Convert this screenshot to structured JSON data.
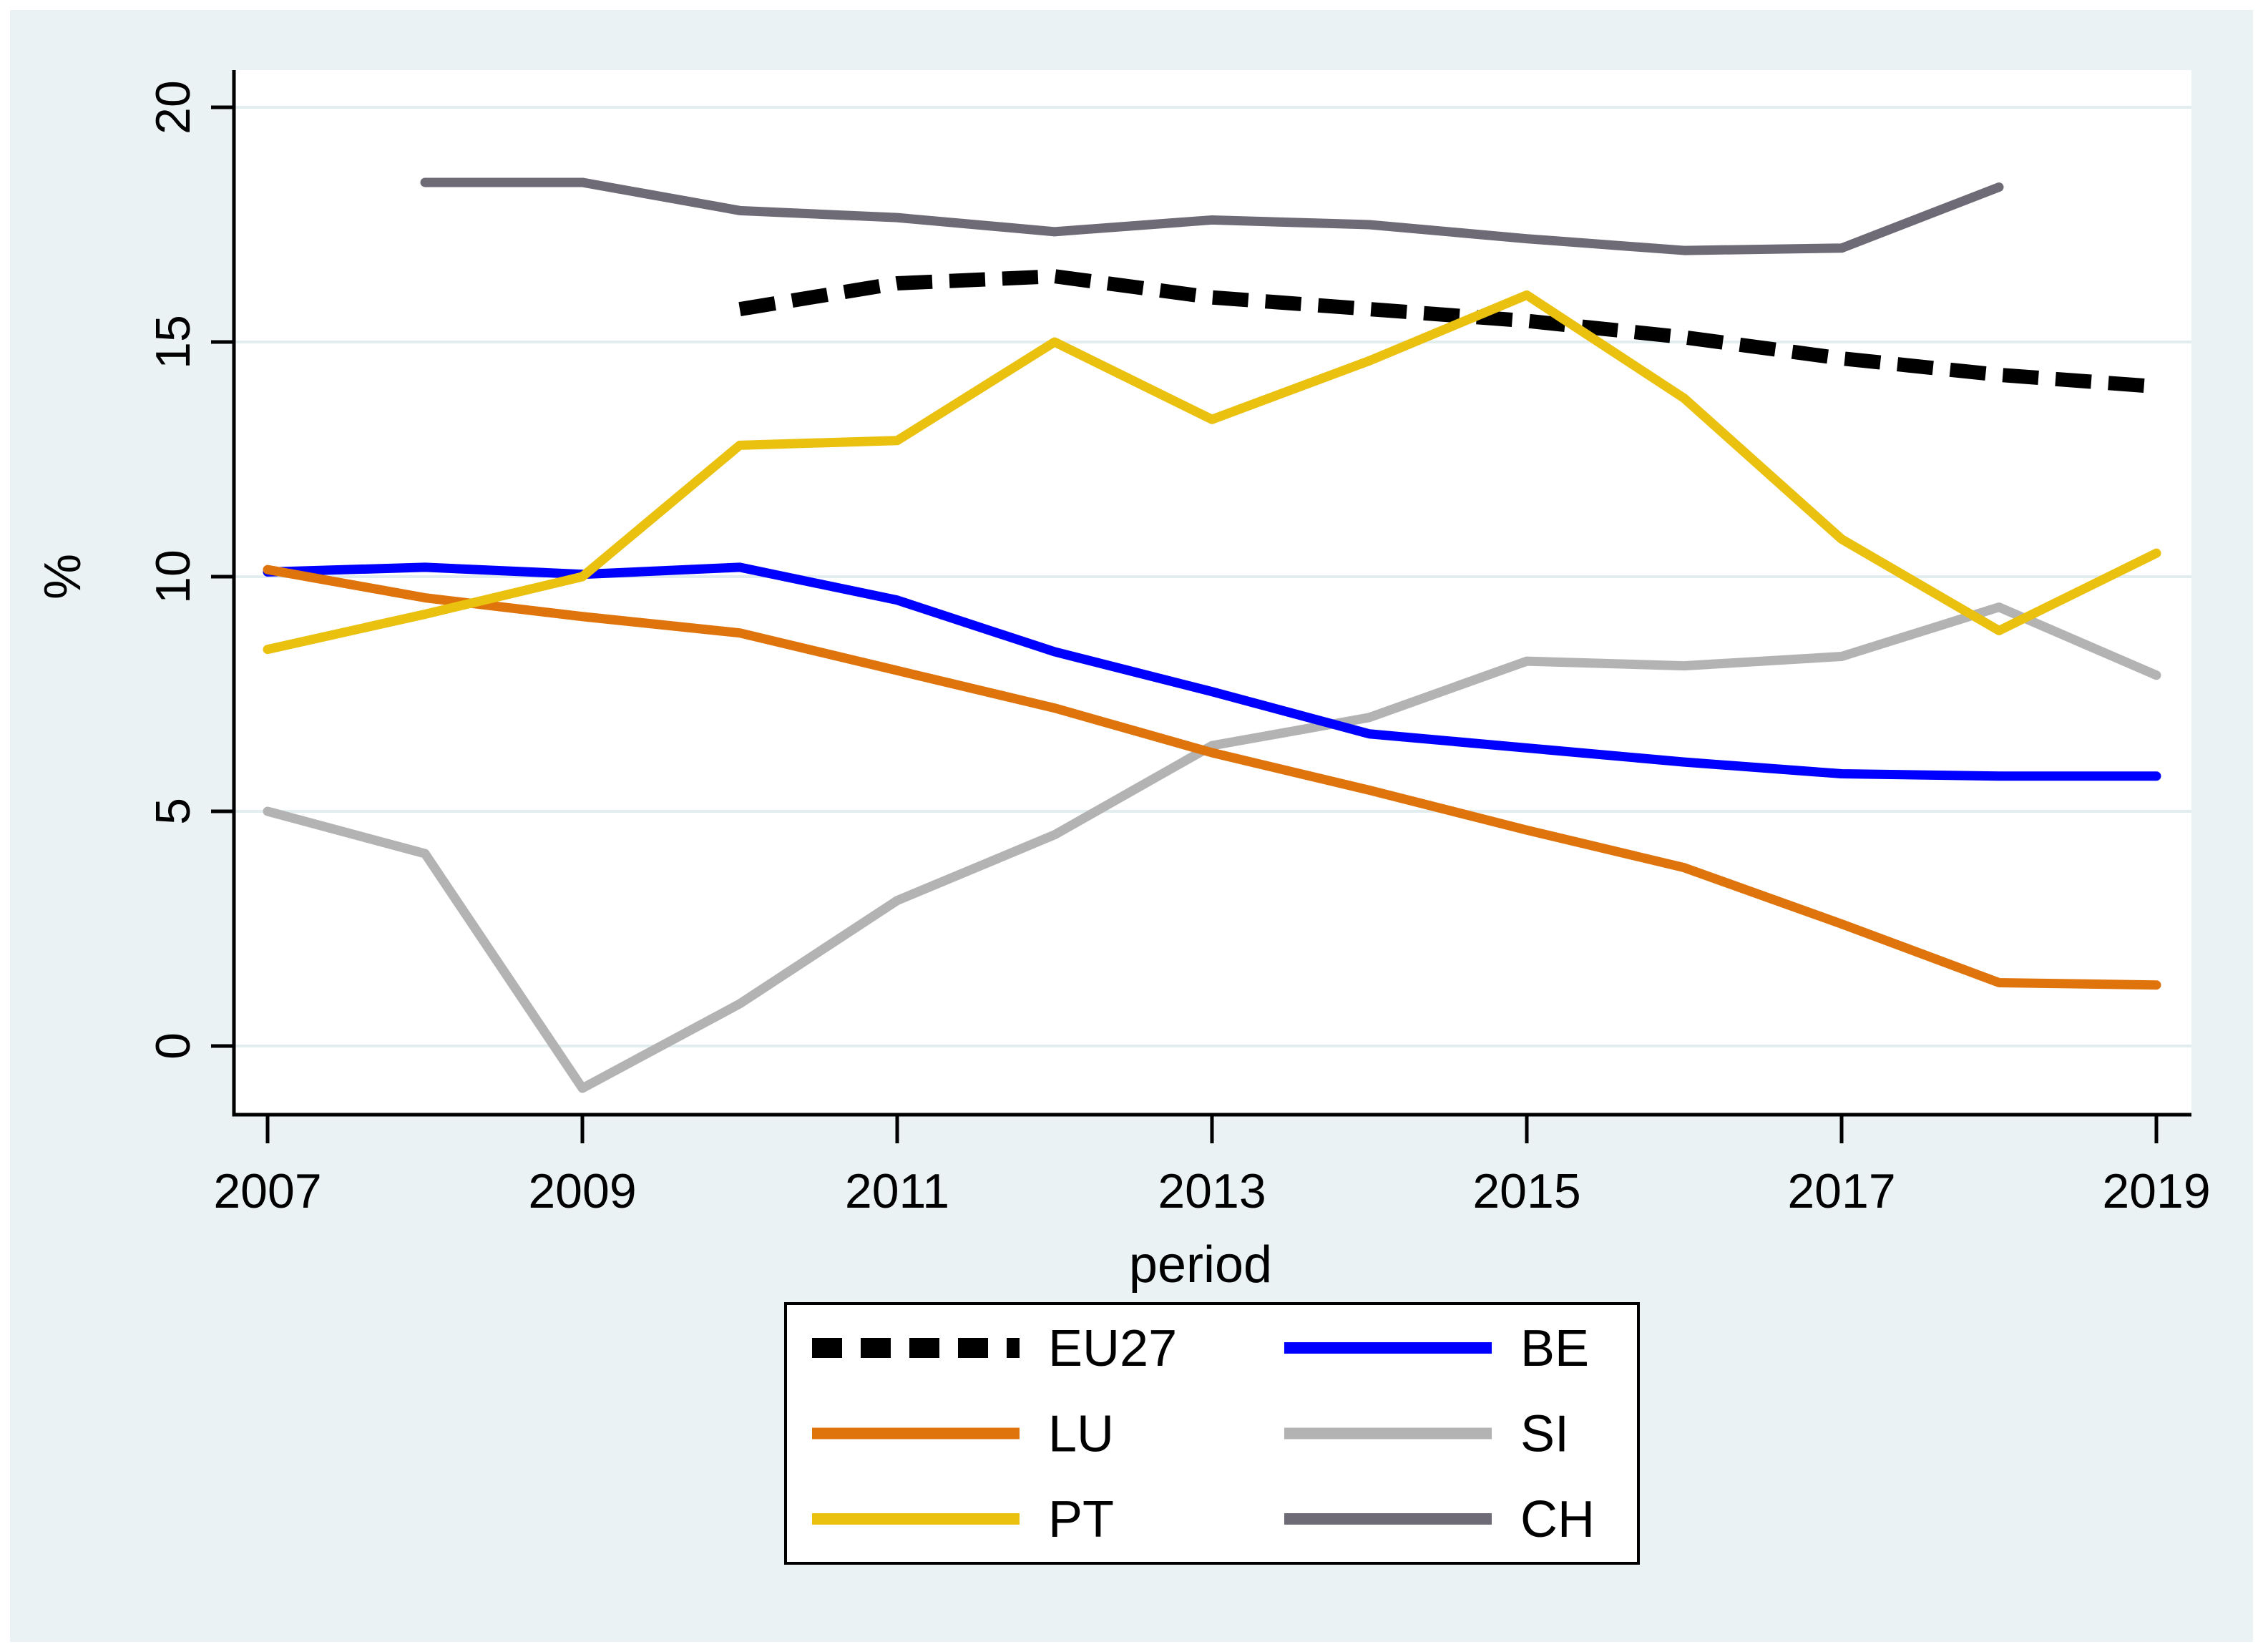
{
  "figure": {
    "outer_border_color": "#ffffff",
    "background": "#eaf2f3",
    "plot_background": "#ffffff",
    "grid_color": "#e2edf0",
    "axis_color": "#000000",
    "text_color": "#000000",
    "legend_background": "#ffffff",
    "legend_border": "#000000"
  },
  "chart_data": {
    "type": "line",
    "title": "",
    "xlabel": "period",
    "ylabel": "%",
    "x_ticks": [
      2007,
      2009,
      2011,
      2013,
      2015,
      2017,
      2019
    ],
    "y_ticks": [
      0,
      5,
      10,
      15,
      20
    ],
    "xlim": [
      2006.8,
      2019.25
    ],
    "ylim": [
      -1.5,
      20.8
    ],
    "grid": "horizontal",
    "legend_position": "below-center",
    "legend_columns": [
      [
        "EU27",
        "LU",
        "PT"
      ],
      [
        "BE",
        "SI",
        "CH"
      ]
    ],
    "series": [
      {
        "id": "EU27",
        "label": "EU27",
        "color": "#000000",
        "dashed": true,
        "x": [
          2010,
          2011,
          2012,
          2013,
          2014,
          2015,
          2016,
          2017,
          2018,
          2019
        ],
        "y": [
          15.7,
          16.25,
          16.4,
          15.95,
          15.7,
          15.45,
          15.1,
          14.65,
          14.3,
          14.05
        ]
      },
      {
        "id": "CH",
        "label": "CH",
        "color": "#6e6a76",
        "dashed": false,
        "x": [
          2008,
          2009,
          2010,
          2011,
          2012,
          2013,
          2014,
          2015,
          2016,
          2017,
          2018
        ],
        "y": [
          18.4,
          18.4,
          17.8,
          17.65,
          17.35,
          17.6,
          17.5,
          17.2,
          16.95,
          17.0,
          18.3
        ]
      },
      {
        "id": "SI",
        "label": "SI",
        "color": "#b3b3b3",
        "dashed": false,
        "x": [
          2007,
          2008,
          2009,
          2010,
          2011,
          2012,
          2013,
          2014,
          2015,
          2016,
          2017,
          2018,
          2019
        ],
        "y": [
          5.0,
          4.1,
          -0.9,
          0.9,
          3.1,
          4.5,
          6.4,
          7.0,
          8.2,
          8.1,
          8.3,
          9.35,
          7.9
        ]
      },
      {
        "id": "BE",
        "label": "BE",
        "color": "#0000ff",
        "dashed": false,
        "x": [
          2007,
          2008,
          2009,
          2010,
          2011,
          2012,
          2013,
          2014,
          2015,
          2016,
          2017,
          2018,
          2019
        ],
        "y": [
          10.1,
          10.2,
          10.05,
          10.2,
          9.5,
          8.4,
          7.55,
          6.65,
          6.35,
          6.05,
          5.8,
          5.75,
          5.75
        ]
      },
      {
        "id": "LU",
        "label": "LU",
        "color": "#e0740c",
        "dashed": false,
        "x": [
          2007,
          2008,
          2009,
          2010,
          2011,
          2012,
          2013,
          2014,
          2015,
          2016,
          2017,
          2018,
          2019
        ],
        "y": [
          10.15,
          9.55,
          9.15,
          8.8,
          8.0,
          7.2,
          6.25,
          5.45,
          4.6,
          3.8,
          2.6,
          1.35,
          1.3
        ]
      },
      {
        "id": "PT",
        "label": "PT",
        "color": "#eac10e",
        "dashed": false,
        "x": [
          2007,
          2008,
          2009,
          2010,
          2011,
          2012,
          2013,
          2014,
          2015,
          2016,
          2017,
          2018,
          2019
        ],
        "y": [
          8.45,
          9.2,
          10.0,
          12.8,
          12.9,
          15.0,
          13.35,
          14.6,
          16.0,
          13.8,
          10.8,
          8.85,
          10.5
        ]
      }
    ]
  }
}
